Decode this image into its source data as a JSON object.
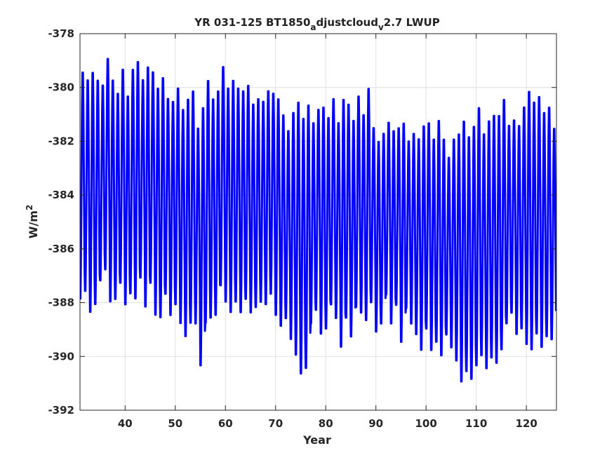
{
  "chart_data": {
    "type": "line",
    "title": {
      "main": "YR 031-125 BT1850",
      "sub1": "a",
      "mid": "djustcloud",
      "sub2": "v",
      "end": "2.7 LWUP"
    },
    "xlabel": "Year",
    "ylabel": {
      "base": "W/m",
      "sup": "2"
    },
    "xlim": [
      31,
      126
    ],
    "ylim": [
      -392,
      -378
    ],
    "xticks": [
      40,
      50,
      60,
      70,
      80,
      90,
      100,
      110,
      120
    ],
    "xtick_labels": [
      "40",
      "50",
      "60",
      "70",
      "80",
      "90",
      "100",
      "110",
      "120"
    ],
    "yticks": [
      -392,
      -390,
      -388,
      -386,
      -384,
      -382,
      -380,
      -378
    ],
    "ytick_labels": [
      "-392",
      "-390",
      "-388",
      "-386",
      "-384",
      "-382",
      "-380",
      "-378"
    ],
    "grid": true,
    "line_color": "#0000ff",
    "series": [
      {
        "x_start": 31,
        "step": 0.0833333,
        "annual_max": [
          -379.3,
          -379.6,
          -379.3,
          -379.6,
          -379.8,
          -378.8,
          -379.6,
          -380.1,
          -379.2,
          -380.2,
          -379.2,
          -378.9,
          -379.6,
          -379.1,
          -379.3,
          -379.9,
          -379.5,
          -380.3,
          -380.4,
          -379.9,
          -380.7,
          -380.3,
          -380.0,
          -381.4,
          -380.6,
          -379.6,
          -380.3,
          -380.0,
          -379.1,
          -379.9,
          -379.6,
          -379.9,
          -380.0,
          -379.8,
          -380.5,
          -380.3,
          -380.4,
          -380.0,
          -380.1,
          -380.3,
          -380.9,
          -381.5,
          -380.8,
          -380.4,
          -381.0,
          -380.5,
          -381.2,
          -380.7,
          -380.6,
          -381.0,
          -380.3,
          -381.2,
          -380.3,
          -380.5,
          -381.1,
          -380.2,
          -380.9,
          -379.9,
          -381.4,
          -381.9,
          -381.6,
          -381.2,
          -381.5,
          -381.4,
          -381.2,
          -381.9,
          -381.6,
          -381.8,
          -381.3,
          -381.2,
          -381.8,
          -381.1,
          -381.8,
          -382.5,
          -381.8,
          -381.6,
          -381.1,
          -381.7,
          -381.3,
          -380.6,
          -381.6,
          -381.1,
          -380.9,
          -380.9,
          -380.3,
          -381.3,
          -381.1,
          -381.3,
          -380.6,
          -380.0,
          -380.4,
          -380.2,
          -380.8,
          -380.6,
          -381.4
        ],
        "annual_min": [
          -388.0,
          -387.7,
          -388.5,
          -388.2,
          -387.3,
          -386.9,
          -388.1,
          -388.0,
          -387.4,
          -388.2,
          -387.8,
          -388.0,
          -387.2,
          -388.3,
          -387.4,
          -388.6,
          -388.7,
          -387.8,
          -388.6,
          -388.2,
          -388.9,
          -389.4,
          -388.9,
          -388.9,
          -390.5,
          -388.9,
          -388.7,
          -388.6,
          -387.5,
          -388.1,
          -388.5,
          -388.1,
          -388.5,
          -388.0,
          -388.5,
          -388.3,
          -388.1,
          -388.2,
          -387.8,
          -388.6,
          -389.0,
          -388.7,
          -389.5,
          -390.1,
          -390.8,
          -390.6,
          -388.9,
          -388.4,
          -389.3,
          -389.1,
          -388.2,
          -388.7,
          -389.8,
          -388.7,
          -389.4,
          -388.3,
          -388.5,
          -388.8,
          -388.1,
          -389.2,
          -388.9,
          -387.8,
          -388.9,
          -388.2,
          -389.6,
          -388.3,
          -388.9,
          -389.3,
          -389.9,
          -389.1,
          -389.9,
          -389.6,
          -390.1,
          -389.3,
          -389.8,
          -390.3,
          -391.1,
          -390.7,
          -391.0,
          -390.5,
          -390.1,
          -390.6,
          -390.2,
          -390.4,
          -389.9,
          -388.9,
          -388.5,
          -389.3,
          -389.1,
          -389.7,
          -389.9,
          -389.3,
          -389.8,
          -389.4,
          -389.5
        ]
      }
    ]
  }
}
